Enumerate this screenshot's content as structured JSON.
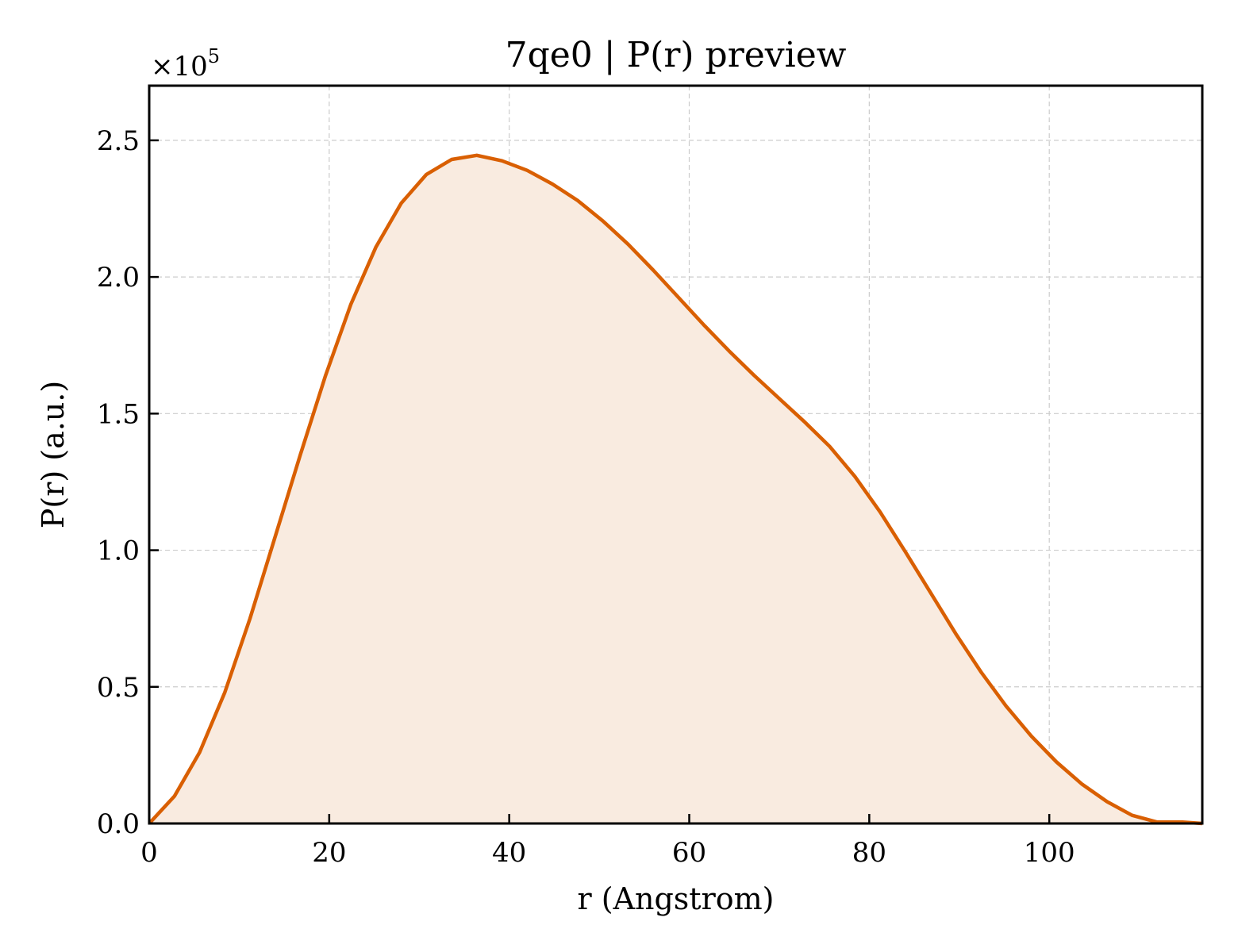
{
  "chart_data": {
    "type": "area",
    "title": "7qe0 | P(r) preview",
    "xlabel": "r (Angstrom)",
    "ylabel": "P(r) (a.u.)",
    "y_multiplier": "×10",
    "y_multiplier_exponent": "5",
    "xlim": [
      0,
      117
    ],
    "ylim": [
      0,
      2.7
    ],
    "x_ticks": [
      0,
      20,
      40,
      60,
      80,
      100
    ],
    "x_tick_labels": [
      "0",
      "20",
      "40",
      "60",
      "80",
      "100"
    ],
    "y_ticks": [
      0,
      0.5,
      1.0,
      1.5,
      2.0,
      2.5
    ],
    "y_tick_labels": [
      "0.0",
      "0.5",
      "1.0",
      "1.5",
      "2.0",
      "2.5"
    ],
    "grid": true,
    "colors": {
      "line": "#d95f02",
      "fill": "#f9ebe0"
    },
    "series": [
      {
        "x": [
          0,
          2.8,
          5.6,
          8.4,
          11.2,
          14.0,
          16.8,
          19.6,
          22.4,
          25.2,
          28.0,
          30.8,
          33.6,
          36.4,
          39.2,
          42.0,
          44.8,
          47.6,
          50.4,
          53.2,
          56.0,
          58.8,
          61.6,
          64.4,
          67.2,
          70.0,
          72.8,
          75.6,
          78.4,
          81.2,
          84.0,
          86.8,
          89.6,
          92.4,
          95.2,
          98.0,
          100.8,
          103.6,
          106.4,
          109.2,
          112.0,
          114.8,
          117.0
        ],
        "values": [
          0.0,
          0.1,
          0.26,
          0.48,
          0.75,
          1.05,
          1.35,
          1.64,
          1.9,
          2.11,
          2.27,
          2.375,
          2.43,
          2.445,
          2.425,
          2.39,
          2.34,
          2.28,
          2.205,
          2.12,
          2.025,
          1.925,
          1.825,
          1.73,
          1.64,
          1.555,
          1.47,
          1.38,
          1.27,
          1.14,
          0.995,
          0.845,
          0.695,
          0.555,
          0.43,
          0.32,
          0.225,
          0.145,
          0.08,
          0.03,
          0.005,
          0.005,
          0.0
        ]
      }
    ]
  }
}
